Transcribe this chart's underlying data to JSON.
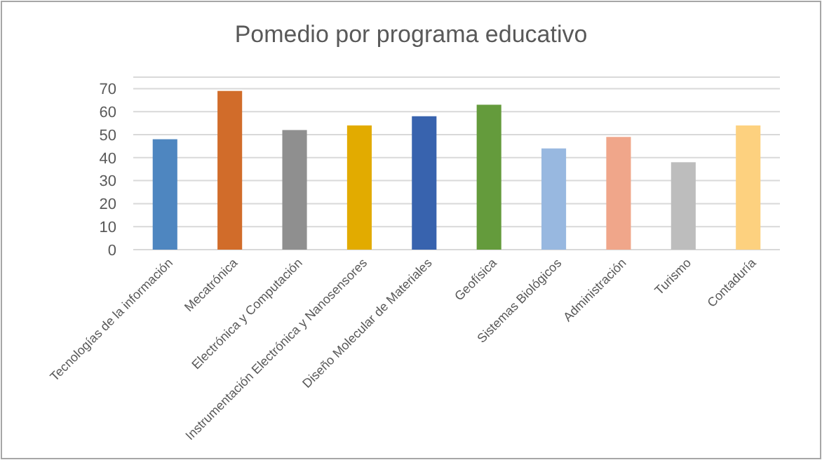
{
  "chart_data": {
    "type": "bar",
    "title": "Pomedio por programa educativo",
    "categories": [
      "Tecnologías de la información",
      "Mecatrónica",
      "Electrónica y Computación",
      "Instrumentación Electrónica y Nanosensores",
      "Diseño Molecular de Materiales",
      "Geofísica",
      "Sistemas Biológicos",
      "Administración",
      "Turismo",
      "Contaduría"
    ],
    "values": [
      48,
      69,
      52,
      54,
      58,
      63,
      44,
      49,
      38,
      54
    ],
    "colors": [
      "#4e86c0",
      "#d16c2a",
      "#8f8f8f",
      "#e2ab00",
      "#3863ae",
      "#649b3c",
      "#98b8e0",
      "#f0a68a",
      "#bdbdbd",
      "#fdd17f"
    ],
    "ylim": [
      0,
      75
    ],
    "yticks": [
      0,
      10,
      20,
      30,
      40,
      50,
      60,
      70,
      {
        "value": 75,
        "label": null
      }
    ],
    "grid": true
  }
}
